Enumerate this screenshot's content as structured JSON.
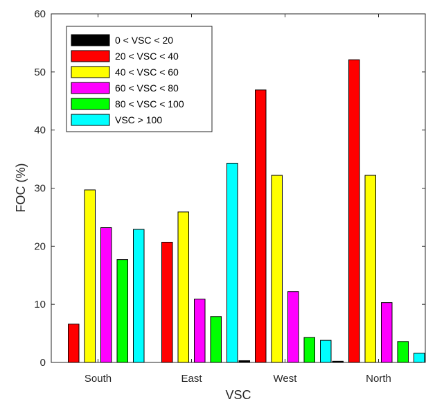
{
  "chart_data": {
    "type": "bar",
    "title": "",
    "xlabel": "VSC",
    "ylabel": "FOC (%)",
    "ylim": [
      0,
      60
    ],
    "yticks": [
      0,
      10,
      20,
      30,
      40,
      50,
      60
    ],
    "grid": false,
    "legend_position": "top-left",
    "categories": [
      "South",
      "East",
      "West",
      "North"
    ],
    "series": [
      {
        "name": "0 < VSC < 20",
        "color": "#000000",
        "values": [
          0.0,
          0.0,
          0.3,
          0.2
        ]
      },
      {
        "name": "20 < VSC < 40",
        "color": "#ff0000",
        "values": [
          6.6,
          20.7,
          46.9,
          52.1
        ]
      },
      {
        "name": "40 < VSC < 60",
        "color": "#ffff00",
        "values": [
          29.7,
          25.9,
          32.2,
          32.2
        ]
      },
      {
        "name": "60 < VSC < 80",
        "color": "#ff00ff",
        "values": [
          23.2,
          10.9,
          12.2,
          10.3
        ]
      },
      {
        "name": "80 < VSC < 100",
        "color": "#00ff00",
        "values": [
          17.7,
          7.9,
          4.3,
          3.6
        ]
      },
      {
        "name": "VSC > 100",
        "color": "#00ffff",
        "values": [
          22.9,
          34.3,
          3.8,
          1.6
        ]
      }
    ]
  }
}
